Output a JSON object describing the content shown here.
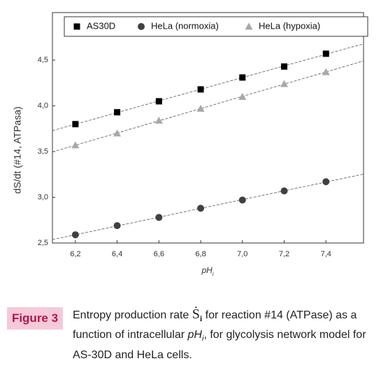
{
  "chart_data": {
    "type": "scatter",
    "y_label": "dS/dt (#14, ATPasa)",
    "x_label": "pH",
    "x_label_sub": "i",
    "legend": "top",
    "series": [
      {
        "name": "AS30D",
        "color": "#000000",
        "marker": "square",
        "x": [
          6.2,
          6.4,
          6.6,
          6.8,
          7.0,
          7.2,
          7.4
        ],
        "values": [
          3.8,
          3.93,
          4.05,
          4.18,
          4.31,
          4.43,
          4.57
        ]
      },
      {
        "name": "HeLa (normoxia)",
        "color": "#404040",
        "marker": "circle",
        "x": [
          6.2,
          6.4,
          6.6,
          6.8,
          7.0,
          7.2,
          7.4
        ],
        "values": [
          2.59,
          2.69,
          2.78,
          2.88,
          2.97,
          3.07,
          3.17
        ]
      },
      {
        "name": "HeLa (hypoxia)",
        "color": "#a8a8a8",
        "marker": "triangle",
        "x": [
          6.2,
          6.4,
          6.6,
          6.8,
          7.0,
          7.2,
          7.4
        ],
        "values": [
          3.57,
          3.7,
          3.84,
          3.97,
          4.1,
          4.24,
          4.37
        ]
      }
    ],
    "xlim": [
      6.09,
      7.58
    ],
    "xticks": [
      {
        "value": 6.2,
        "label": "6,2"
      },
      {
        "value": 6.4,
        "label": "6,4"
      },
      {
        "value": 6.6,
        "label": "6,6"
      },
      {
        "value": 6.8,
        "label": "6,8"
      },
      {
        "value": 7.0,
        "label": "7,0"
      },
      {
        "value": 7.2,
        "label": "7,2"
      },
      {
        "value": 7.4,
        "label": "7,4"
      }
    ],
    "ylim": [
      2.5,
      5.02
    ],
    "yticks": [
      {
        "value": 2.5,
        "label": "2,5"
      },
      {
        "value": 3.0,
        "label": "3,0"
      },
      {
        "value": 3.5,
        "label": "3,5"
      },
      {
        "value": 4.0,
        "label": "4,0"
      },
      {
        "value": 4.5,
        "label": "4,5"
      }
    ],
    "trend_lines": true
  },
  "caption": {
    "label": "Figure 3",
    "parts": [
      "Entropy production rate ",
      "Ṡ",
      "i",
      " for reaction #14 (ATPase) as a function of intracellular ",
      "pH",
      "i",
      ", for glycolysis network model for AS-30D and HeLa cells."
    ]
  }
}
